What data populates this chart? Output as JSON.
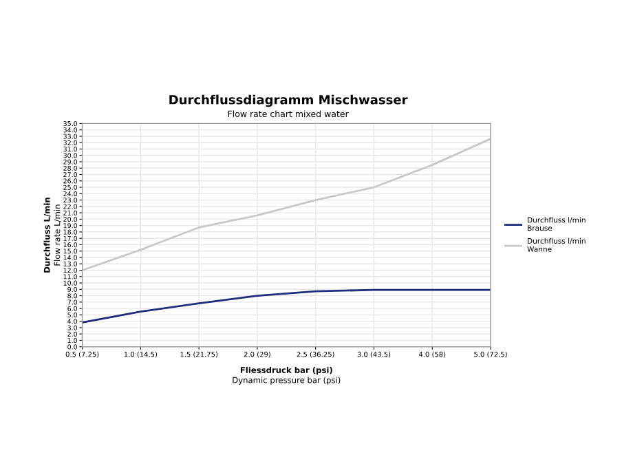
{
  "chart_data": {
    "type": "line",
    "title": "Durchflussdiagramm Mischwasser",
    "subtitle": "Flow rate chart mixed water",
    "xlabel": "Fliessdruck bar (psi)\nDynamic pressure bar (psi)",
    "ylabel": "Durchfluss L/min\nFlow rate L/min",
    "categories": [
      "0.5 (7.25)",
      "1.0 (14.5)",
      "1.5 (21.75)",
      "2.0 (29)",
      "2.5 (36.25)",
      "3.0 (43.5)",
      "4.0 (58)",
      "5.0 (72.5)"
    ],
    "series": [
      {
        "name": "Durchfluss l/min\nBrause",
        "color": "#1f2d7a",
        "values": [
          3.8,
          5.5,
          6.8,
          8.0,
          8.7,
          8.9,
          8.9,
          8.9
        ]
      },
      {
        "name": "Durchfluss l/min\nWanne",
        "color": "#c8c8c8",
        "values": [
          12.0,
          15.2,
          18.7,
          20.6,
          23.0,
          25.0,
          28.5,
          32.6
        ]
      }
    ],
    "ylim": [
      0,
      35
    ],
    "yticks": [
      {
        "value": 0,
        "label": "0.0"
      },
      {
        "value": 1,
        "label": "1.0"
      },
      {
        "value": 2,
        "label": "2.0"
      },
      {
        "value": 3,
        "label": "3.0"
      },
      {
        "value": 4,
        "label": "4.0"
      },
      {
        "value": 5,
        "label": "5.0"
      },
      {
        "value": 6,
        "label": "6.0"
      },
      {
        "value": 7,
        "label": "7.0"
      },
      {
        "value": 8,
        "label": "8.0"
      },
      {
        "value": 9,
        "label": "9.0"
      },
      {
        "value": 10,
        "label": "10.0"
      },
      {
        "value": 11,
        "label": "11.0"
      },
      {
        "value": 12,
        "label": "12.0"
      },
      {
        "value": 13,
        "label": "13.0"
      },
      {
        "value": 14,
        "label": "14.0"
      },
      {
        "value": 15,
        "label": "15.0"
      },
      {
        "value": 16,
        "label": "16.0"
      },
      {
        "value": 17,
        "label": "17.0"
      },
      {
        "value": 18,
        "label": "18.0"
      },
      {
        "value": 19,
        "label": "19.0"
      },
      {
        "value": 20,
        "label": "20.0"
      },
      {
        "value": 21,
        "label": "21.0"
      },
      {
        "value": 22,
        "label": "22.0"
      },
      {
        "value": 23,
        "label": "23.0"
      },
      {
        "value": 24,
        "label": "24.0"
      },
      {
        "value": 25,
        "label": "25.0"
      },
      {
        "value": 26,
        "label": "26.0"
      },
      {
        "value": 27,
        "label": "27.0"
      },
      {
        "value": 28,
        "label": "28.0"
      },
      {
        "value": 29,
        "label": "29.0"
      },
      {
        "value": 30,
        "label": "30.0"
      },
      {
        "value": 31,
        "label": "31.0"
      },
      {
        "value": 32,
        "label": "32.0"
      },
      {
        "value": 33,
        "label": "33.0"
      },
      {
        "value": 34,
        "label": "34.0"
      },
      {
        "value": 35,
        "label": "35.0"
      }
    ],
    "grid": true,
    "legend": "right",
    "marker": "none",
    "line_style": "solid"
  }
}
